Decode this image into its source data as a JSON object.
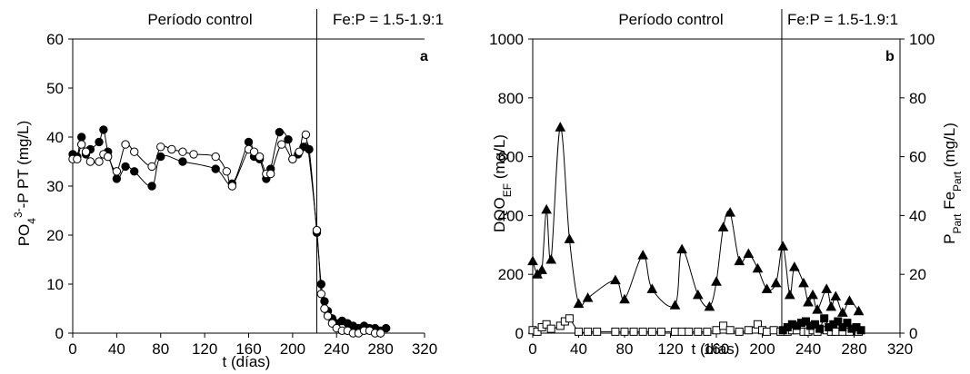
{
  "chart_data": [
    {
      "type": "line",
      "panel_label": "a",
      "annotations": {
        "control_period": "Período control",
        "fe_ratio": "Fe:P = 1.5-1.9:1",
        "event_x": 222
      },
      "xlabel": "t (días)",
      "ylabel_parts": {
        "a": "PO",
        "a_sub": "4",
        "a_sup": "3-",
        "b": "-P  PT  (mg/L)"
      },
      "xlim": [
        0,
        320
      ],
      "ylim": [
        0,
        60
      ],
      "xticks": [
        "0",
        "40",
        "80",
        "120",
        "160",
        "200",
        "240",
        "280",
        "320"
      ],
      "yticks": [
        "0",
        "10",
        "20",
        "30",
        "40",
        "50",
        "60"
      ],
      "grid": false,
      "series": [
        {
          "marker": "filled-circle",
          "x": [
            0,
            4,
            8,
            12,
            16,
            24,
            28,
            32,
            40,
            48,
            56,
            72,
            80,
            100,
            130,
            145,
            160,
            165,
            170,
            176,
            180,
            188,
            196,
            200,
            205,
            210,
            215,
            222,
            226,
            229,
            232,
            236,
            240,
            245,
            250,
            255,
            260,
            265,
            270,
            275,
            280,
            285
          ],
          "y": [
            36.5,
            36,
            40,
            36.5,
            37.5,
            39,
            41.5,
            37,
            31.5,
            34,
            33,
            30,
            36,
            35,
            33.5,
            30.5,
            39,
            36,
            35.5,
            31.5,
            33.5,
            41,
            39.5,
            35.5,
            36.5,
            38,
            37.5,
            20.5,
            10,
            6.5,
            4.5,
            3,
            2,
            2.5,
            2,
            1.5,
            1,
            1.5,
            1,
            1,
            0.5,
            1
          ]
        },
        {
          "marker": "open-circle",
          "x": [
            0,
            4,
            8,
            12,
            16,
            24,
            28,
            32,
            40,
            48,
            56,
            72,
            80,
            90,
            100,
            110,
            130,
            140,
            145,
            160,
            165,
            170,
            176,
            180,
            190,
            200,
            206,
            212,
            222,
            226,
            229,
            232,
            236,
            240,
            245,
            250,
            255,
            260,
            265,
            270,
            275,
            280
          ],
          "y": [
            35.5,
            35.5,
            38.5,
            37,
            35,
            35,
            36.5,
            36,
            33,
            38.5,
            37,
            34,
            38,
            37.5,
            37,
            36.5,
            36,
            33,
            30,
            37.5,
            37,
            36,
            32.5,
            32.5,
            38.5,
            35.5,
            37,
            40.5,
            21,
            8,
            5,
            3.5,
            2,
            1,
            0.5,
            0.5,
            0,
            0,
            0.5,
            0.5,
            0,
            0
          ]
        }
      ]
    },
    {
      "type": "line",
      "panel_label": "b",
      "annotations": {
        "control_period": "Período control",
        "fe_ratio": "Fe:P = 1.5-1.9:1",
        "event_x": 217
      },
      "xlabel": "t (días)",
      "ylabel_left_parts": {
        "a": "DQO",
        "a_sub": "EF",
        "b": "  (mg/L)"
      },
      "ylabel_right_parts": {
        "a": "P",
        "a_sub": "Part",
        "b": "   Fe",
        "b_sub": "Part",
        "c": "  (mg/L)"
      },
      "xlim": [
        0,
        320
      ],
      "ylim_left": [
        0,
        1000
      ],
      "ylim_right": [
        0,
        100
      ],
      "xticks": [
        "0",
        "40",
        "80",
        "120",
        "160",
        "200",
        "240",
        "280",
        "320"
      ],
      "yticks_left": [
        "0",
        "200",
        "400",
        "600",
        "800",
        "1000"
      ],
      "yticks_right": [
        "0",
        "20",
        "40",
        "60",
        "80",
        "100"
      ],
      "grid": false,
      "series": [
        {
          "marker": "filled-triangle",
          "axis": "left",
          "x": [
            0,
            4,
            8,
            12,
            16,
            24,
            32,
            40,
            48,
            72,
            80,
            96,
            104,
            124,
            130,
            144,
            154,
            160,
            166,
            172,
            180,
            188,
            196,
            204,
            212,
            218,
            224,
            228,
            236,
            240,
            244,
            248,
            256,
            260,
            264,
            270,
            276,
            284
          ],
          "y": [
            245,
            200,
            215,
            420,
            250,
            700,
            320,
            100,
            120,
            180,
            115,
            265,
            150,
            95,
            285,
            130,
            90,
            175,
            360,
            410,
            245,
            270,
            220,
            150,
            170,
            295,
            130,
            225,
            170,
            105,
            130,
            80,
            150,
            90,
            125,
            70,
            110,
            75
          ]
        },
        {
          "marker": "open-square",
          "axis": "right",
          "x": [
            0,
            4,
            8,
            12,
            16,
            24,
            28,
            32,
            40,
            48,
            56,
            72,
            80,
            88,
            96,
            104,
            112,
            124,
            130,
            136,
            144,
            152,
            160,
            166,
            172,
            180,
            188,
            196,
            200,
            204,
            210,
            216,
            222,
            226,
            230,
            236,
            240,
            244,
            248,
            256,
            260,
            264,
            270,
            276,
            284
          ],
          "y": [
            1,
            0.5,
            2,
            3,
            1.5,
            2.5,
            4,
            5,
            0.5,
            0.5,
            0.5,
            0.5,
            0.5,
            0.5,
            0.5,
            0.5,
            0.5,
            0.5,
            0.5,
            0.5,
            0.5,
            0.5,
            1,
            2.5,
            1,
            0.5,
            1,
            3,
            1,
            0.5,
            1,
            0.5,
            0.5,
            1,
            1,
            0.5,
            0.5,
            1,
            0.5,
            1,
            0.5,
            0.5,
            0.5,
            0.5,
            0.5
          ]
        },
        {
          "marker": "filled-square",
          "axis": "right",
          "x": [
            218,
            222,
            226,
            230,
            234,
            238,
            242,
            246,
            250,
            254,
            258,
            262,
            266,
            270,
            274,
            278,
            282,
            286
          ],
          "y": [
            1,
            2,
            3,
            2.5,
            3.5,
            4,
            2.5,
            3,
            1.5,
            5,
            2,
            3,
            4,
            2,
            3.5,
            1.5,
            2,
            1
          ]
        }
      ]
    }
  ]
}
